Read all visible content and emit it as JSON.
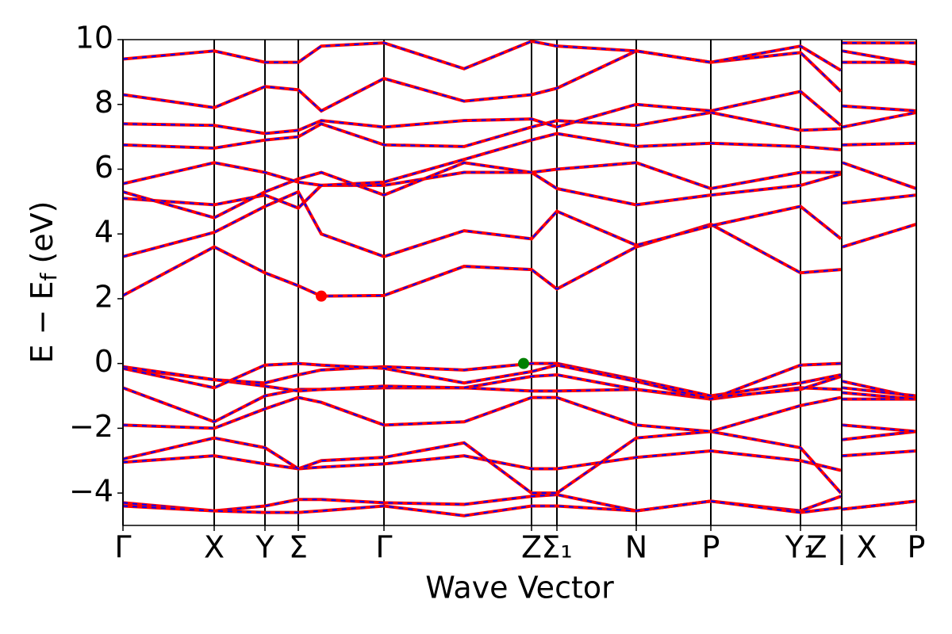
{
  "chart_data": {
    "type": "band_structure",
    "xlabel": "Wave Vector",
    "ylabel": [
      "E − E",
      "f",
      " (eV)"
    ],
    "xlim": [
      0,
      1
    ],
    "ylim": [
      -5,
      10
    ],
    "yticks": [
      {
        "value": -4,
        "label": "−4"
      },
      {
        "value": -2,
        "label": "−2"
      },
      0,
      2,
      4,
      6,
      8,
      10
    ],
    "xticks": [
      {
        "value": 0,
        "label": "Γ"
      },
      {
        "value": 0.115,
        "label": "X"
      },
      {
        "value": 0.179,
        "label": "Y"
      },
      {
        "value": 0.221,
        "label": "Σ"
      },
      {
        "value": 0.329,
        "label": "Γ"
      },
      {
        "value": 0.515,
        "label": "Z"
      },
      {
        "value": 0.547,
        "label": "Σ₁"
      },
      {
        "value": 0.647,
        "label": "N"
      },
      {
        "value": 0.741,
        "label": "P"
      },
      {
        "value": 0.854,
        "label": "Y₁"
      },
      {
        "value": 0.906,
        "label": "Z | X"
      },
      {
        "value": 1,
        "label": "P"
      }
    ],
    "x": [
      0,
      0.115,
      0.179,
      0.221,
      0.25,
      0.329,
      0.43,
      0.515,
      0.547,
      0.647,
      0.741,
      0.854,
      0.905,
      0.906,
      0.907,
      1
    ],
    "color": "#ff0000",
    "dash_color": "#0000ff",
    "bands": [
      [
        -4.3,
        -4.55,
        -4.4,
        -4.2,
        -4.2,
        -4.3,
        -4.35,
        -4.1,
        -4.05,
        -4.55,
        -4.25,
        -4.55,
        -4.1,
        null,
        -4.5,
        -4.25
      ],
      [
        -4.4,
        -4.55,
        -4.6,
        -4.6,
        -4.55,
        -4.4,
        -4.7,
        -4.4,
        -4.4,
        -4.55,
        -4.25,
        -4.6,
        -4.45,
        null,
        -4.5,
        -4.25
      ],
      [
        -3.05,
        -2.85,
        -3.1,
        -3.25,
        -3.2,
        -3.1,
        -2.85,
        -3.25,
        -3.25,
        -2.9,
        -2.7,
        -3.0,
        -3.3,
        null,
        -2.85,
        -2.7
      ],
      [
        -2.95,
        -2.3,
        -2.6,
        -3.25,
        -3.0,
        -2.9,
        -2.45,
        -4.0,
        -4.0,
        -2.3,
        -2.1,
        -2.6,
        -4.0,
        null,
        -2.35,
        -2.1
      ],
      [
        -1.9,
        -2.0,
        -1.4,
        -1.05,
        -1.2,
        -1.9,
        -1.8,
        -1.05,
        -1.05,
        -1.9,
        -2.1,
        -1.3,
        -1.05,
        null,
        -1.9,
        -2.1
      ],
      [
        -0.75,
        -1.8,
        -1.0,
        -0.8,
        -0.8,
        -0.75,
        -0.75,
        -0.85,
        -0.85,
        -0.8,
        -1.1,
        -0.75,
        -0.8,
        null,
        -1.1,
        -1.1
      ],
      [
        -0.15,
        -0.5,
        -0.7,
        -0.85,
        -0.8,
        -0.7,
        -0.75,
        -0.4,
        -0.35,
        -0.8,
        -1.05,
        -0.8,
        -0.4,
        null,
        -0.9,
        -1.1
      ],
      [
        -0.1,
        -0.5,
        -0.6,
        -0.35,
        -0.2,
        -0.1,
        -0.2,
        0,
        0,
        -0.5,
        -1.0,
        -0.6,
        -0.35,
        null,
        -0.55,
        -1.05
      ],
      [
        -0.15,
        -0.75,
        -0.05,
        0,
        -0.05,
        -0.15,
        -0.6,
        -0.25,
        -0.05,
        -0.55,
        -1.1,
        -0.05,
        0,
        null,
        -0.75,
        -1.0
      ],
      [
        2.1,
        3.6,
        2.8,
        2.4,
        2.08,
        2.1,
        3.0,
        2.9,
        2.3,
        3.6,
        4.3,
        2.8,
        2.9,
        null,
        3.6,
        4.3
      ],
      [
        3.3,
        4.05,
        4.85,
        5.3,
        4.0,
        3.3,
        4.1,
        3.85,
        4.7,
        3.65,
        4.25,
        4.85,
        3.85,
        null,
        4.95,
        5.2
      ],
      [
        5.1,
        4.9,
        5.2,
        4.8,
        5.5,
        5.5,
        5.9,
        5.9,
        5.4,
        4.9,
        5.2,
        5.5,
        5.85,
        null,
        6.2,
        5.4
      ],
      [
        5.3,
        4.5,
        5.3,
        5.7,
        5.9,
        5.2,
        6.2,
        5.9,
        6.0,
        6.2,
        5.4,
        5.9,
        5.9,
        null,
        6.75,
        6.8
      ],
      [
        5.55,
        6.2,
        5.9,
        5.6,
        5.5,
        5.6,
        6.3,
        6.9,
        7.1,
        6.7,
        6.8,
        6.7,
        6.6,
        null,
        7.3,
        7.75
      ],
      [
        6.75,
        6.65,
        6.9,
        7.0,
        7.4,
        6.75,
        6.7,
        7.3,
        7.5,
        7.35,
        7.75,
        7.2,
        7.25,
        null,
        7.95,
        7.8
      ],
      [
        7.4,
        7.35,
        7.1,
        7.2,
        7.5,
        7.3,
        7.5,
        7.55,
        7.3,
        8.0,
        7.8,
        8.4,
        7.35,
        null,
        9.65,
        9.25
      ],
      [
        8.3,
        7.9,
        8.55,
        8.45,
        7.8,
        8.8,
        8.1,
        8.3,
        8.5,
        9.65,
        9.3,
        9.6,
        8.4,
        null,
        9.3,
        9.3
      ],
      [
        9.4,
        9.65,
        9.3,
        9.3,
        9.8,
        9.9,
        9.1,
        9.95,
        9.8,
        9.65,
        9.3,
        9.8,
        9.05,
        null,
        9.9,
        9.9
      ]
    ],
    "points": [
      {
        "x": 0.25,
        "y": 2.08,
        "color": "#ff0000"
      },
      {
        "x": 0.505,
        "y": 0,
        "color": "#008000"
      }
    ]
  }
}
